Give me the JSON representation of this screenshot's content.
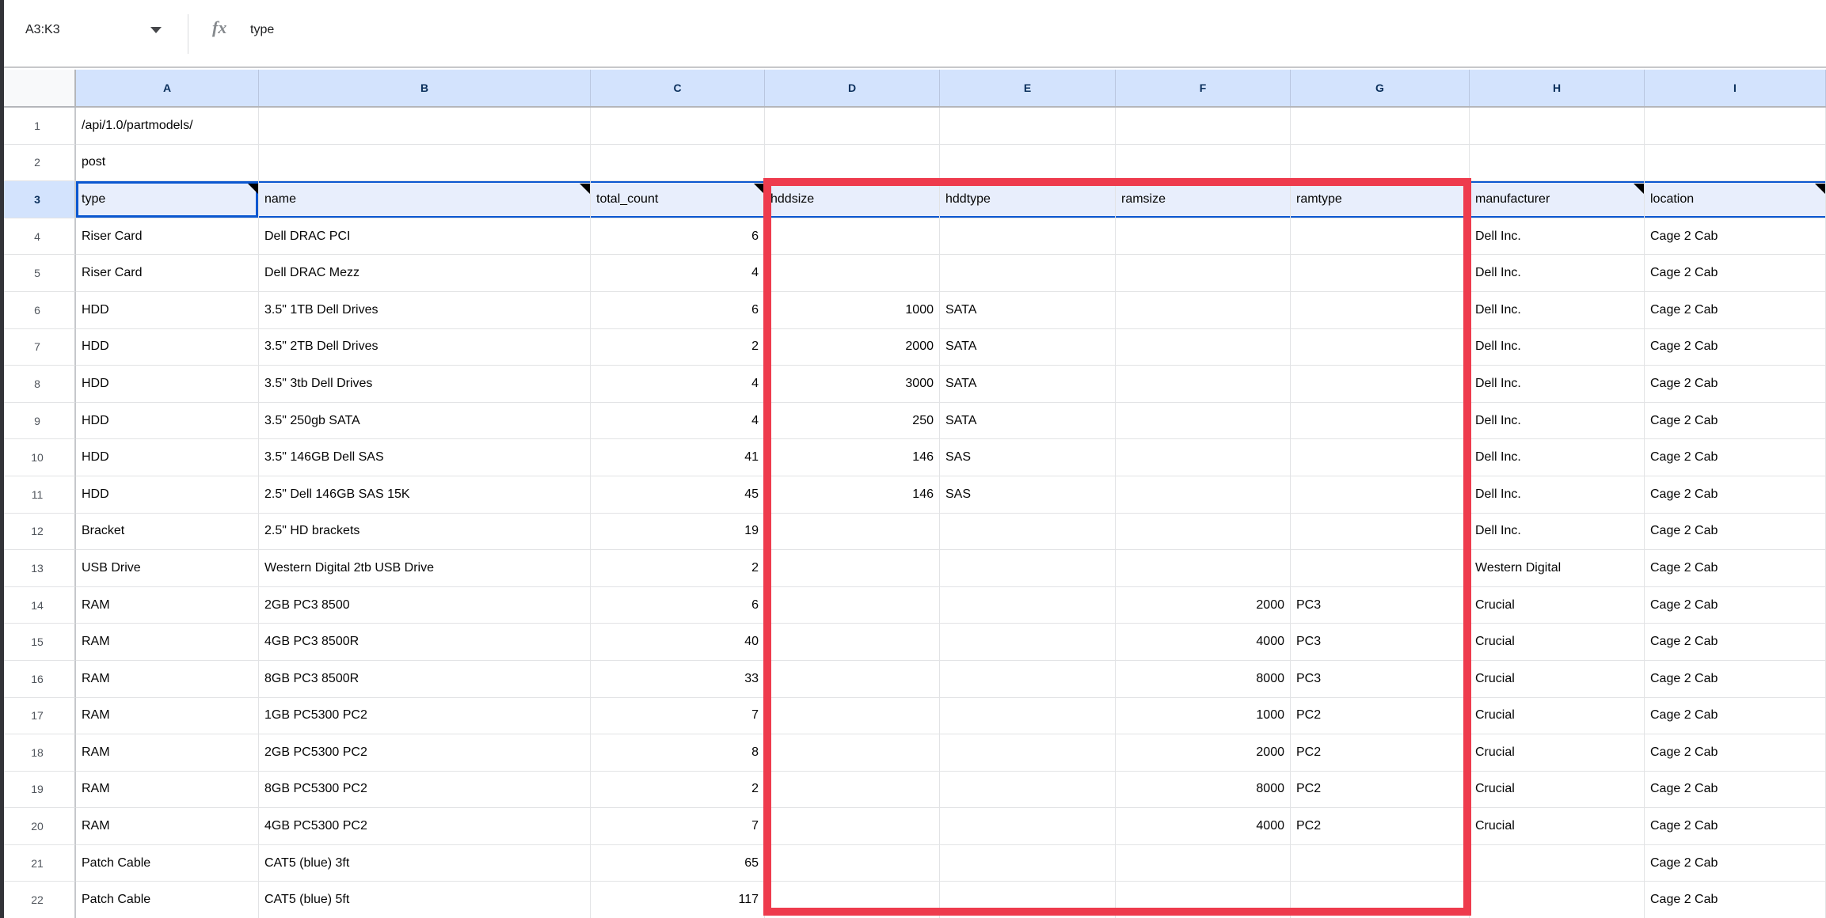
{
  "name_box": {
    "value": "A3:K3"
  },
  "formula_bar": {
    "fx_label": "fx",
    "value": "type"
  },
  "grid": {
    "column_letters": [
      "A",
      "B",
      "C",
      "D",
      "E",
      "F",
      "G",
      "H",
      "I"
    ],
    "selected_row": 3,
    "active_cell": "A3",
    "header_row_number": 3,
    "filter_columns": [
      "A",
      "B",
      "C",
      "H",
      "I"
    ],
    "rows": [
      [
        "/api/1.0/partmodels/",
        "",
        "",
        "",
        "",
        "",
        "",
        "",
        ""
      ],
      [
        "post",
        "",
        "",
        "",
        "",
        "",
        "",
        "",
        ""
      ],
      [
        "type",
        "name",
        "total_count",
        "hddsize",
        "hddtype",
        "ramsize",
        "ramtype",
        "manufacturer",
        "location"
      ],
      [
        "Riser Card",
        "Dell DRAC PCI",
        "6",
        "",
        "",
        "",
        "",
        "Dell Inc.",
        "Cage 2 Cab"
      ],
      [
        "Riser Card",
        "Dell DRAC Mezz",
        "4",
        "",
        "",
        "",
        "",
        "Dell Inc.",
        "Cage 2 Cab"
      ],
      [
        "HDD",
        "3.5\" 1TB Dell Drives",
        "6",
        "1000",
        "SATA",
        "",
        "",
        "Dell Inc.",
        "Cage 2 Cab"
      ],
      [
        "HDD",
        "3.5\" 2TB Dell Drives",
        "2",
        "2000",
        "SATA",
        "",
        "",
        "Dell Inc.",
        "Cage 2 Cab"
      ],
      [
        "HDD",
        "3.5\" 3tb Dell Drives",
        "4",
        "3000",
        "SATA",
        "",
        "",
        "Dell Inc.",
        "Cage 2 Cab"
      ],
      [
        "HDD",
        "3.5\" 250gb SATA",
        "4",
        "250",
        "SATA",
        "",
        "",
        "Dell Inc.",
        "Cage 2 Cab"
      ],
      [
        "HDD",
        "3.5\" 146GB Dell SAS",
        "41",
        "146",
        "SAS",
        "",
        "",
        "Dell Inc.",
        "Cage 2 Cab"
      ],
      [
        "HDD",
        "2.5\" Dell 146GB SAS 15K",
        "45",
        "146",
        "SAS",
        "",
        "",
        "Dell Inc.",
        "Cage 2 Cab"
      ],
      [
        "Bracket",
        "2.5\" HD brackets",
        "19",
        "",
        "",
        "",
        "",
        "Dell Inc.",
        "Cage 2 Cab"
      ],
      [
        "USB Drive",
        "Western Digital 2tb USB Drive",
        "2",
        "",
        "",
        "",
        "",
        "Western Digital",
        "Cage 2 Cab"
      ],
      [
        "RAM",
        "2GB PC3 8500",
        "6",
        "",
        "",
        "2000",
        "PC3",
        "Crucial",
        "Cage 2 Cab"
      ],
      [
        "RAM",
        "4GB PC3 8500R",
        "40",
        "",
        "",
        "4000",
        "PC3",
        "Crucial",
        "Cage 2 Cab"
      ],
      [
        "RAM",
        "8GB PC3 8500R",
        "33",
        "",
        "",
        "8000",
        "PC3",
        "Crucial",
        "Cage 2 Cab"
      ],
      [
        "RAM",
        "1GB PC5300 PC2",
        "7",
        "",
        "",
        "1000",
        "PC2",
        "Crucial",
        "Cage 2 Cab"
      ],
      [
        "RAM",
        "2GB PC5300 PC2",
        "8",
        "",
        "",
        "2000",
        "PC2",
        "Crucial",
        "Cage 2 Cab"
      ],
      [
        "RAM",
        "8GB PC5300 PC2",
        "2",
        "",
        "",
        "8000",
        "PC2",
        "Crucial",
        "Cage 2 Cab"
      ],
      [
        "RAM",
        "4GB PC5300 PC2",
        "7",
        "",
        "",
        "4000",
        "PC2",
        "Crucial",
        "Cage 2 Cab"
      ],
      [
        "Patch Cable",
        "CAT5 (blue) 3ft",
        "65",
        "",
        "",
        "",
        "",
        "",
        "Cage 2 Cab"
      ],
      [
        "Patch Cable",
        "CAT5 (blue) 5ft",
        "117",
        "",
        "",
        "",
        "",
        "",
        "Cage 2 Cab"
      ]
    ]
  },
  "highlight": {
    "range": "D3:G22",
    "color": "#ee3b4d"
  },
  "colors": {
    "selection_border": "#0b57d0",
    "selected_header_fill": "#d3e3fd",
    "selected_row_fill": "#e8eefc",
    "gridline": "#e2e3e5"
  }
}
